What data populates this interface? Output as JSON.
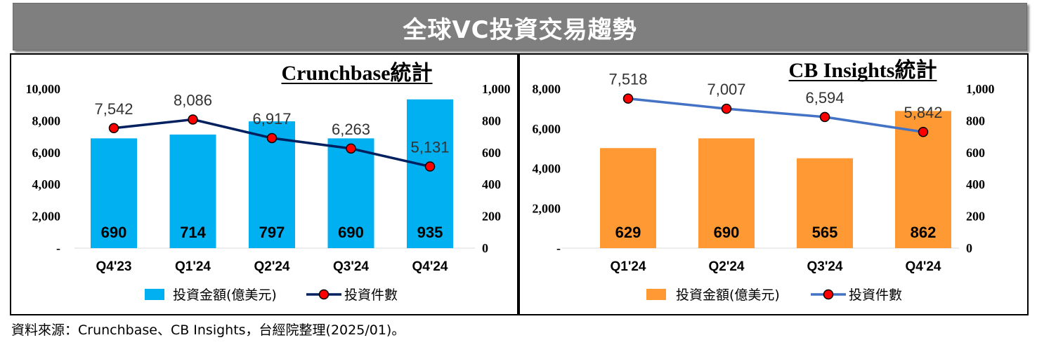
{
  "banner": {
    "title": "全球VC投資交易趨勢"
  },
  "chart_data": [
    {
      "type": "bar",
      "title": "Crunchbase統計",
      "categories": [
        "Q4'23",
        "Q1'24",
        "Q2'24",
        "Q3'24",
        "Q4'24"
      ],
      "series": [
        {
          "name": "投資金額(億美元)",
          "type": "bar",
          "axis": "right",
          "values": [
            690,
            714,
            797,
            690,
            935
          ],
          "color": "#00b0f0"
        },
        {
          "name": "投資件數",
          "type": "line",
          "axis": "left",
          "values": [
            7542,
            8086,
            6917,
            6263,
            5131
          ],
          "color": "#002060",
          "marker_color": "#ff0000"
        }
      ],
      "bar_labels": [
        "690",
        "714",
        "797",
        "690",
        "935"
      ],
      "point_labels": [
        "7,542",
        "8,086",
        "6,917",
        "6,263",
        "5,131"
      ],
      "left_axis": {
        "min": 0,
        "max": 10000,
        "ticks": [
          0,
          2000,
          4000,
          6000,
          8000,
          10000
        ],
        "tick_labels": [
          "-",
          "2,000",
          "4,000",
          "6,000",
          "8,000",
          "10,000"
        ]
      },
      "right_axis": {
        "min": 0,
        "max": 1000,
        "ticks": [
          0,
          200,
          400,
          600,
          800,
          1000
        ],
        "tick_labels": [
          "0",
          "200",
          "400",
          "600",
          "800",
          "1,000"
        ]
      },
      "legend": {
        "placement": "bottom",
        "bar": "投資金額(億美元)",
        "line": "投資件數"
      },
      "grid": false
    },
    {
      "type": "bar",
      "title": "CB Insights統計",
      "categories": [
        "Q1'24",
        "Q2'24",
        "Q3'24",
        "Q4'24"
      ],
      "series": [
        {
          "name": "投資金額(億美元)",
          "type": "bar",
          "axis": "right",
          "values": [
            629,
            690,
            565,
            862
          ],
          "color": "#ff9933"
        },
        {
          "name": "投資件數",
          "type": "line",
          "axis": "left",
          "values": [
            7518,
            7007,
            6594,
            5842
          ],
          "color": "#4472c4",
          "marker_color": "#ff0000"
        }
      ],
      "bar_labels": [
        "629",
        "690",
        "565",
        "862"
      ],
      "point_labels": [
        "7,518",
        "7,007",
        "6,594",
        "5,842"
      ],
      "left_axis": {
        "min": 0,
        "max": 8000,
        "ticks": [
          0,
          2000,
          4000,
          6000,
          8000
        ],
        "tick_labels": [
          "-",
          "2,000",
          "4,000",
          "6,000",
          "8,000"
        ]
      },
      "right_axis": {
        "min": 0,
        "max": 1000,
        "ticks": [
          0,
          200,
          400,
          600,
          800,
          1000
        ],
        "tick_labels": [
          "0",
          "200",
          "400",
          "600",
          "800",
          "1,000"
        ]
      },
      "legend": {
        "placement": "bottom",
        "bar": "投資金額(億美元)",
        "line": "投資件數"
      },
      "grid": false
    }
  ],
  "source_note": "資料來源：Crunchbase、CB Insights，台經院整理(2025/01)。"
}
